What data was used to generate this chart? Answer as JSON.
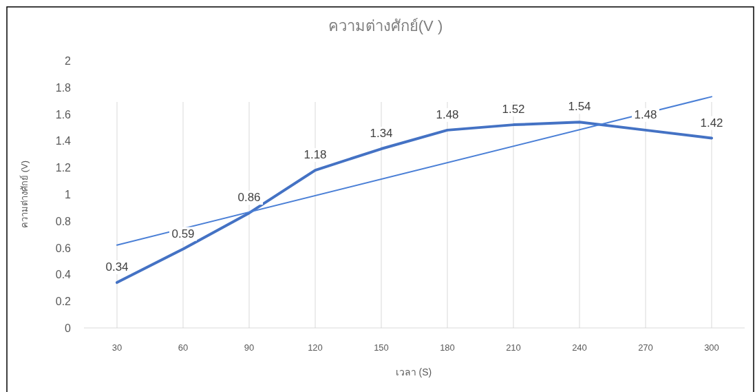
{
  "chart_data": {
    "type": "line",
    "title": "ความต่างศักย์(V )",
    "xlabel": "เวลา (S)",
    "ylabel": "ความต่างศักย์ (V)",
    "categories": [
      "30",
      "60",
      "90",
      "120",
      "150",
      "180",
      "210",
      "240",
      "270",
      "300"
    ],
    "series": [
      {
        "color": "#4472c4",
        "values": [
          0.34,
          0.59,
          0.86,
          1.18,
          1.34,
          1.48,
          1.52,
          1.54,
          1.48,
          1.42
        ],
        "value_labels": [
          "0.34",
          "0.59",
          "0.86",
          "1.18",
          "1.34",
          "1.48",
          "1.52",
          "1.54",
          "1.48",
          "1.42"
        ],
        "line_style": "solid"
      },
      {
        "color": "#4a7fd6",
        "x": [
          "30",
          "300"
        ],
        "values": [
          0.62,
          1.73
        ],
        "line_style": "solid"
      }
    ],
    "ylim": [
      0,
      2
    ],
    "yticks": [
      0,
      0.2,
      0.4,
      0.6,
      0.8,
      1,
      1.2,
      1.4,
      1.6,
      1.8,
      2
    ],
    "grid": "x",
    "marker": "none"
  }
}
